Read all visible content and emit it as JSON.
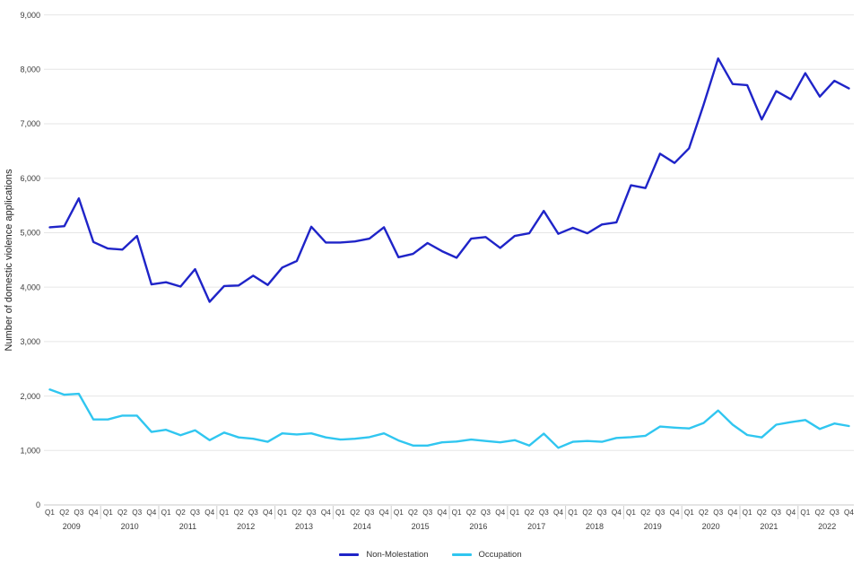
{
  "chart_data": {
    "type": "line",
    "title": "",
    "xlabel": "",
    "ylabel": "Number of domestic violence applications",
    "ylim": [
      0,
      9000
    ],
    "grid": true,
    "legend_position": "bottom",
    "y_ticks": [
      {
        "value": 0,
        "label": "0"
      },
      {
        "value": 1000,
        "label": "1,000"
      },
      {
        "value": 2000,
        "label": "2,000"
      },
      {
        "value": 3000,
        "label": "3,000"
      },
      {
        "value": 4000,
        "label": "4,000"
      },
      {
        "value": 5000,
        "label": "5,000"
      },
      {
        "value": 6000,
        "label": "6,000"
      },
      {
        "value": 7000,
        "label": "7,000"
      },
      {
        "value": 8000,
        "label": "8,000"
      },
      {
        "value": 9000,
        "label": "9,000"
      }
    ],
    "quarter_labels": [
      "Q1",
      "Q2",
      "Q3",
      "Q4"
    ],
    "years": [
      "2009",
      "2010",
      "2011",
      "2012",
      "2013",
      "2014",
      "2015",
      "2016",
      "2017",
      "2018",
      "2019",
      "2020",
      "2021",
      "2022"
    ],
    "series": [
      {
        "name": "Non-Molestation",
        "color": "#1f24c8",
        "values": [
          5100,
          5120,
          5630,
          4830,
          4710,
          4690,
          4940,
          4050,
          4090,
          4010,
          4330,
          3730,
          4020,
          4030,
          4210,
          4040,
          4360,
          4480,
          5110,
          4820,
          4820,
          4840,
          4890,
          5100,
          4550,
          4610,
          4810,
          4660,
          4540,
          4890,
          4920,
          4720,
          4940,
          4990,
          5400,
          4980,
          5090,
          4990,
          5150,
          5190,
          5870,
          5820,
          6450,
          6280,
          6550,
          7350,
          8200,
          7730,
          7710,
          7080,
          7600,
          7450,
          7930,
          7500,
          7790,
          7650
        ]
      },
      {
        "name": "Occupation",
        "color": "#30c6f0",
        "values": [
          2120,
          2025,
          2040,
          1570,
          1570,
          1640,
          1640,
          1340,
          1380,
          1280,
          1370,
          1190,
          1330,
          1240,
          1215,
          1160,
          1315,
          1295,
          1315,
          1240,
          1200,
          1215,
          1245,
          1315,
          1185,
          1090,
          1090,
          1150,
          1165,
          1200,
          1175,
          1150,
          1190,
          1090,
          1310,
          1050,
          1160,
          1175,
          1160,
          1230,
          1245,
          1270,
          1440,
          1420,
          1405,
          1505,
          1735,
          1475,
          1285,
          1240,
          1475,
          1520,
          1560,
          1395,
          1495,
          1450
        ]
      }
    ],
    "colors": {
      "gridline": "#e6e6e6",
      "axis_line": "#c8c8c8",
      "year_separator": "#cccccc",
      "tick_text": "#3c3c3c"
    }
  }
}
